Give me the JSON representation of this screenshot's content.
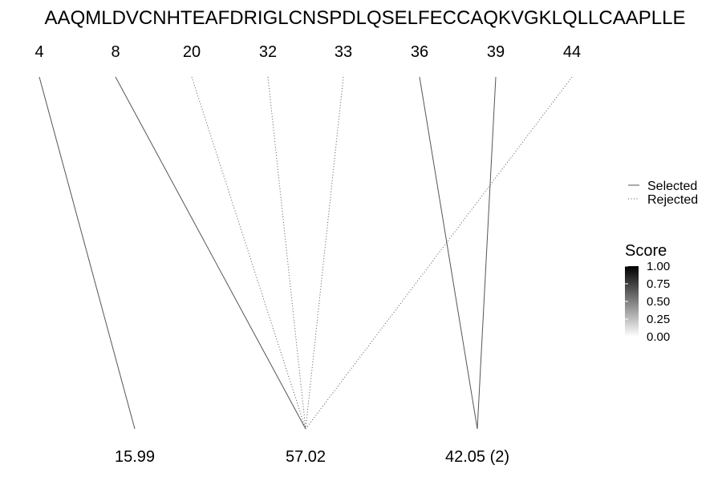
{
  "sequence": "AAQMLDVCNHTEAFDRIGLCNSPDLQSELFECCAQKVGKLQLLCAAPLLE",
  "positions": [
    "4",
    "8",
    "20",
    "32",
    "33",
    "36",
    "39",
    "44"
  ],
  "mass_labels": [
    "15.99",
    "57.02",
    "42.05 (2)"
  ],
  "connections": [
    {
      "position": "4",
      "mass": "15.99",
      "status": "selected",
      "score": 0.7
    },
    {
      "position": "8",
      "mass": "57.02",
      "status": "selected",
      "score": 0.7
    },
    {
      "position": "20",
      "mass": "57.02",
      "status": "rejected",
      "score": 0.7
    },
    {
      "position": "32",
      "mass": "57.02",
      "status": "rejected",
      "score": 0.7
    },
    {
      "position": "33",
      "mass": "57.02",
      "status": "rejected",
      "score": 0.7
    },
    {
      "position": "44",
      "mass": "57.02",
      "status": "rejected",
      "score": 0.7
    },
    {
      "position": "36",
      "mass": "42.05 (2)",
      "status": "selected",
      "score": 0.7
    },
    {
      "position": "39",
      "mass": "42.05 (2)",
      "status": "selected",
      "score": 0.7
    }
  ],
  "legend": {
    "line_types": [
      {
        "label": "Selected",
        "style": "solid"
      },
      {
        "label": "Rejected",
        "style": "dotted"
      }
    ],
    "score_title": "Score",
    "score_ticks": [
      "1.00",
      "0.75",
      "0.50",
      "0.25",
      "0.00"
    ],
    "score_range": [
      0,
      1
    ]
  },
  "colors": {
    "line": "#555555",
    "text": "#000000",
    "score_high": "#000000",
    "score_low": "#ffffff"
  }
}
